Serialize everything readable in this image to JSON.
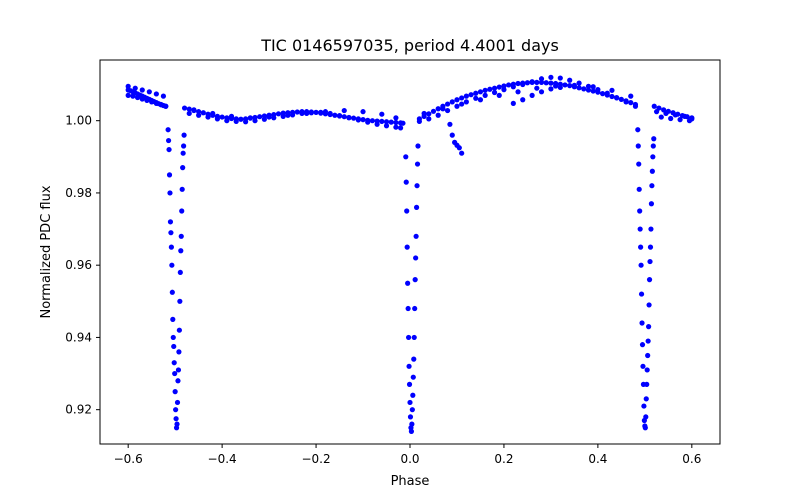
{
  "chart_data": {
    "type": "scatter",
    "title": "TIC 0146597035, period 4.4001 days",
    "xlabel": "Phase",
    "ylabel": "Normalized PDC flux",
    "xlim": [
      -0.66,
      0.66
    ],
    "ylim": [
      0.9105,
      1.0168
    ],
    "xticks": [
      -0.6,
      -0.4,
      -0.2,
      0.0,
      0.2,
      0.4,
      0.6
    ],
    "xtick_labels": [
      "−0.6",
      "−0.4",
      "−0.2",
      "0.0",
      "0.2",
      "0.4",
      "0.6"
    ],
    "yticks": [
      0.92,
      0.94,
      0.96,
      0.98,
      1.0
    ],
    "ytick_labels": [
      "0.92",
      "0.94",
      "0.96",
      "0.98",
      "1.00"
    ],
    "grid": false,
    "marker_color": "#0000ff",
    "series": [
      {
        "x": [
          -0.6,
          -0.595,
          -0.59,
          -0.585,
          -0.58,
          -0.575,
          -0.57,
          -0.565,
          -0.56,
          -0.555,
          -0.55,
          -0.545,
          -0.54,
          -0.535,
          -0.53,
          -0.525,
          -0.52,
          -0.6,
          -0.59,
          -0.58,
          -0.57,
          -0.56,
          -0.55,
          -0.54,
          -0.53,
          -0.52,
          -0.6,
          -0.585,
          -0.57,
          -0.555,
          -0.54,
          -0.525,
          -0.48,
          -0.47,
          -0.46,
          -0.45,
          -0.44,
          -0.43,
          -0.42,
          -0.41,
          -0.4,
          -0.39,
          -0.38,
          -0.37,
          -0.36,
          -0.35,
          -0.34,
          -0.33,
          -0.32,
          -0.31,
          -0.3,
          -0.29,
          -0.28,
          -0.27,
          -0.26,
          -0.25,
          -0.24,
          -0.23,
          -0.22,
          -0.21,
          -0.2,
          -0.19,
          -0.18,
          -0.17,
          -0.16,
          -0.15,
          -0.14,
          -0.13,
          -0.12,
          -0.11,
          -0.1,
          -0.09,
          -0.08,
          -0.07,
          -0.06,
          -0.05,
          -0.04,
          -0.03,
          -0.02,
          -0.015,
          -0.47,
          -0.45,
          -0.43,
          -0.41,
          -0.39,
          -0.37,
          -0.35,
          -0.33,
          -0.31,
          -0.29,
          -0.27,
          -0.25,
          -0.23,
          -0.21,
          -0.19,
          -0.17,
          -0.15,
          -0.13,
          -0.11,
          -0.09,
          -0.07,
          -0.05,
          -0.03,
          -0.02,
          -0.46,
          -0.42,
          -0.38,
          -0.34,
          -0.3,
          -0.26,
          -0.22,
          -0.18,
          -0.14,
          -0.1,
          -0.06,
          -0.03,
          0.02,
          0.03,
          0.04,
          0.05,
          0.06,
          0.07,
          0.08,
          0.09,
          0.1,
          0.11,
          0.12,
          0.13,
          0.14,
          0.15,
          0.16,
          0.17,
          0.18,
          0.19,
          0.2,
          0.21,
          0.22,
          0.23,
          0.24,
          0.25,
          0.26,
          0.27,
          0.28,
          0.29,
          0.3,
          0.31,
          0.32,
          0.33,
          0.34,
          0.35,
          0.36,
          0.37,
          0.38,
          0.39,
          0.4,
          0.41,
          0.42,
          0.43,
          0.44,
          0.45,
          0.46,
          0.47,
          0.48,
          0.02,
          0.04,
          0.06,
          0.08,
          0.1,
          0.12,
          0.14,
          0.16,
          0.18,
          0.2,
          0.22,
          0.24,
          0.26,
          0.28,
          0.3,
          0.32,
          0.34,
          0.36,
          0.38,
          0.4,
          0.42,
          0.44,
          0.46,
          0.48,
          0.03,
          0.07,
          0.11,
          0.15,
          0.19,
          0.23,
          0.27,
          0.31,
          0.35,
          0.39,
          0.43,
          0.47,
          0.22,
          0.24,
          0.26,
          0.28,
          0.3,
          0.32,
          0.085,
          0.09,
          0.095,
          0.1,
          0.105,
          0.11,
          0.52,
          0.53,
          0.54,
          0.55,
          0.56,
          0.57,
          0.58,
          0.59,
          0.6,
          0.525,
          0.545,
          0.565,
          0.585,
          0.6,
          0.535,
          0.555,
          0.575,
          0.595,
          -0.515,
          -0.514,
          -0.513,
          -0.512,
          -0.511,
          -0.51,
          -0.509,
          -0.508,
          -0.507,
          -0.506,
          -0.505,
          -0.504,
          -0.503,
          -0.502,
          -0.501,
          -0.5,
          -0.499,
          -0.498,
          -0.497,
          -0.496,
          -0.495,
          -0.494,
          -0.493,
          -0.492,
          -0.491,
          -0.49,
          -0.489,
          -0.488,
          -0.487,
          -0.486,
          -0.485,
          -0.484,
          -0.483,
          -0.482,
          -0.481,
          -0.009,
          -0.008,
          -0.007,
          -0.006,
          -0.005,
          -0.004,
          -0.003,
          -0.002,
          -0.001,
          0.0,
          0.001,
          0.002,
          0.003,
          0.004,
          0.005,
          0.006,
          0.007,
          0.008,
          0.009,
          0.01,
          0.011,
          0.012,
          0.013,
          0.014,
          0.015,
          0.016,
          0.017,
          0.485,
          0.486,
          0.487,
          0.488,
          0.489,
          0.49,
          0.491,
          0.492,
          0.493,
          0.494,
          0.495,
          0.496,
          0.497,
          0.498,
          0.499,
          0.5,
          0.501,
          0.502,
          0.503,
          0.504,
          0.505,
          0.506,
          0.507,
          0.508,
          0.509,
          0.51,
          0.511,
          0.512,
          0.513,
          0.514,
          0.515,
          0.516,
          0.517,
          0.518,
          0.519
        ],
        "y": [
          1.0085,
          1.0083,
          1.008,
          1.0077,
          1.0074,
          1.0071,
          1.0068,
          1.0065,
          1.0062,
          1.0059,
          1.0056,
          1.0053,
          1.005,
          1.0047,
          1.0045,
          1.0042,
          1.004,
          1.007,
          1.0068,
          1.0064,
          1.006,
          1.0056,
          1.0052,
          1.0048,
          1.0044,
          1.004,
          1.0095,
          1.009,
          1.0085,
          1.008,
          1.0074,
          1.0068,
          1.0035,
          1.0032,
          1.0028,
          1.0025,
          1.0022,
          1.0018,
          1.0015,
          1.0012,
          1.001,
          1.0008,
          1.0006,
          1.0005,
          1.0004,
          1.0005,
          1.0007,
          1.0009,
          1.0011,
          1.0013,
          1.0015,
          1.0017,
          1.0019,
          1.0021,
          1.0022,
          1.0023,
          1.0024,
          1.0025,
          1.0025,
          1.0024,
          1.0023,
          1.0021,
          1.0019,
          1.0017,
          1.0015,
          1.0013,
          1.0011,
          1.0009,
          1.0007,
          1.0005,
          1.0003,
          1.0001,
          1.0,
          0.9999,
          0.9998,
          0.9997,
          0.9996,
          0.9995,
          0.9994,
          0.9993,
          1.002,
          1.0015,
          1.001,
          1.0005,
          1.0,
          0.9998,
          0.9997,
          1.0,
          1.0004,
          1.0008,
          1.0012,
          1.0016,
          1.002,
          1.0022,
          1.0023,
          1.002,
          1.0014,
          1.0008,
          1.0002,
          0.9996,
          0.999,
          0.9986,
          0.9982,
          0.998,
          1.003,
          1.002,
          1.0012,
          1.0008,
          1.001,
          1.0015,
          1.002,
          1.0025,
          1.0028,
          1.0025,
          1.0018,
          1.0008,
          1.0005,
          1.0012,
          1.0019,
          1.0026,
          1.0033,
          1.004,
          1.0046,
          1.0052,
          1.0058,
          1.0063,
          1.0068,
          1.0072,
          1.0076,
          1.008,
          1.0084,
          1.0087,
          1.009,
          1.0093,
          1.0096,
          1.0099,
          1.0101,
          1.0103,
          1.0104,
          1.0105,
          1.0106,
          1.0106,
          1.0106,
          1.0105,
          1.0104,
          1.0103,
          1.0101,
          1.0099,
          1.0097,
          1.0094,
          1.0091,
          1.0088,
          1.0085,
          1.0082,
          1.0079,
          1.0075,
          1.0071,
          1.0067,
          1.0063,
          1.0059,
          1.0055,
          1.005,
          1.0045,
          0.9998,
          1.0005,
          1.0015,
          1.0028,
          1.004,
          1.0052,
          1.0062,
          1.007,
          1.0078,
          1.0086,
          1.0094,
          1.01,
          1.0108,
          1.0116,
          1.012,
          1.0118,
          1.0112,
          1.0104,
          1.0095,
          1.0086,
          1.0076,
          1.0064,
          1.0052,
          1.004,
          1.002,
          1.0033,
          1.0046,
          1.0058,
          1.007,
          1.008,
          1.009,
          1.0096,
          1.0098,
          1.0094,
          1.0084,
          1.0068,
          1.0048,
          1.0058,
          1.007,
          1.008,
          1.0088,
          1.0092,
          0.999,
          0.996,
          0.994,
          0.9932,
          0.9925,
          0.991,
          1.004,
          1.0035,
          1.003,
          1.0026,
          1.0022,
          1.0018,
          1.0014,
          1.0011,
          1.0008,
          1.0025,
          1.002,
          1.0016,
          1.0012,
          1.0005,
          1.001,
          1.0006,
          1.0003,
          1.0,
          0.9975,
          0.9945,
          0.992,
          0.985,
          0.98,
          0.972,
          0.969,
          0.965,
          0.96,
          0.9525,
          0.945,
          0.94,
          0.9375,
          0.933,
          0.93,
          0.925,
          0.92,
          0.9175,
          0.915,
          0.916,
          0.922,
          0.928,
          0.931,
          0.936,
          0.942,
          0.95,
          0.958,
          0.964,
          0.968,
          0.975,
          0.981,
          0.987,
          0.991,
          0.993,
          0.996,
          0.99,
          0.983,
          0.975,
          0.965,
          0.955,
          0.948,
          0.94,
          0.932,
          0.927,
          0.922,
          0.918,
          0.915,
          0.914,
          0.916,
          0.92,
          0.924,
          0.929,
          0.934,
          0.94,
          0.948,
          0.956,
          0.962,
          0.968,
          0.976,
          0.982,
          0.988,
          0.993,
          0.9975,
          0.993,
          0.988,
          0.981,
          0.975,
          0.97,
          0.965,
          0.96,
          0.952,
          0.944,
          0.938,
          0.932,
          0.927,
          0.921,
          0.917,
          0.9155,
          0.915,
          0.918,
          0.923,
          0.927,
          0.931,
          0.935,
          0.939,
          0.943,
          0.949,
          0.956,
          0.961,
          0.965,
          0.97,
          0.977,
          0.982,
          0.986,
          0.99,
          0.993,
          0.995
        ]
      }
    ]
  }
}
